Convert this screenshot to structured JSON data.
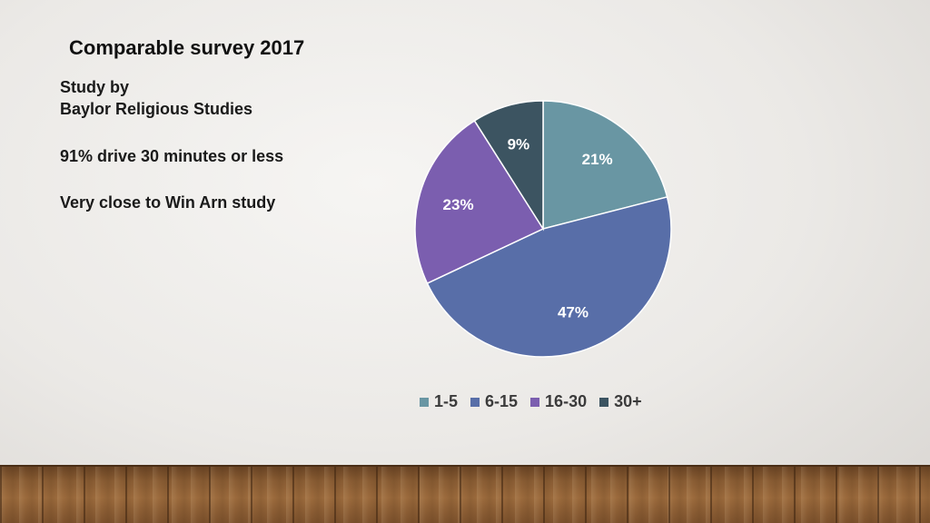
{
  "slide": {
    "title": "Comparable survey 2017",
    "lines": [
      "Study by",
      "Baylor Religious Studies",
      "91% drive 30 minutes or less",
      "Very close to Win Arn study"
    ]
  },
  "chart_data": {
    "type": "pie",
    "categories": [
      "1-5",
      "6-15",
      "16-30",
      "30+"
    ],
    "values": [
      21,
      47,
      23,
      9
    ],
    "labels": [
      "21%",
      "47%",
      "23%",
      "9%"
    ],
    "colors": [
      "#6996a3",
      "#586ea8",
      "#7b5eaf",
      "#3c5461"
    ],
    "legend_position": "bottom",
    "title": ""
  }
}
